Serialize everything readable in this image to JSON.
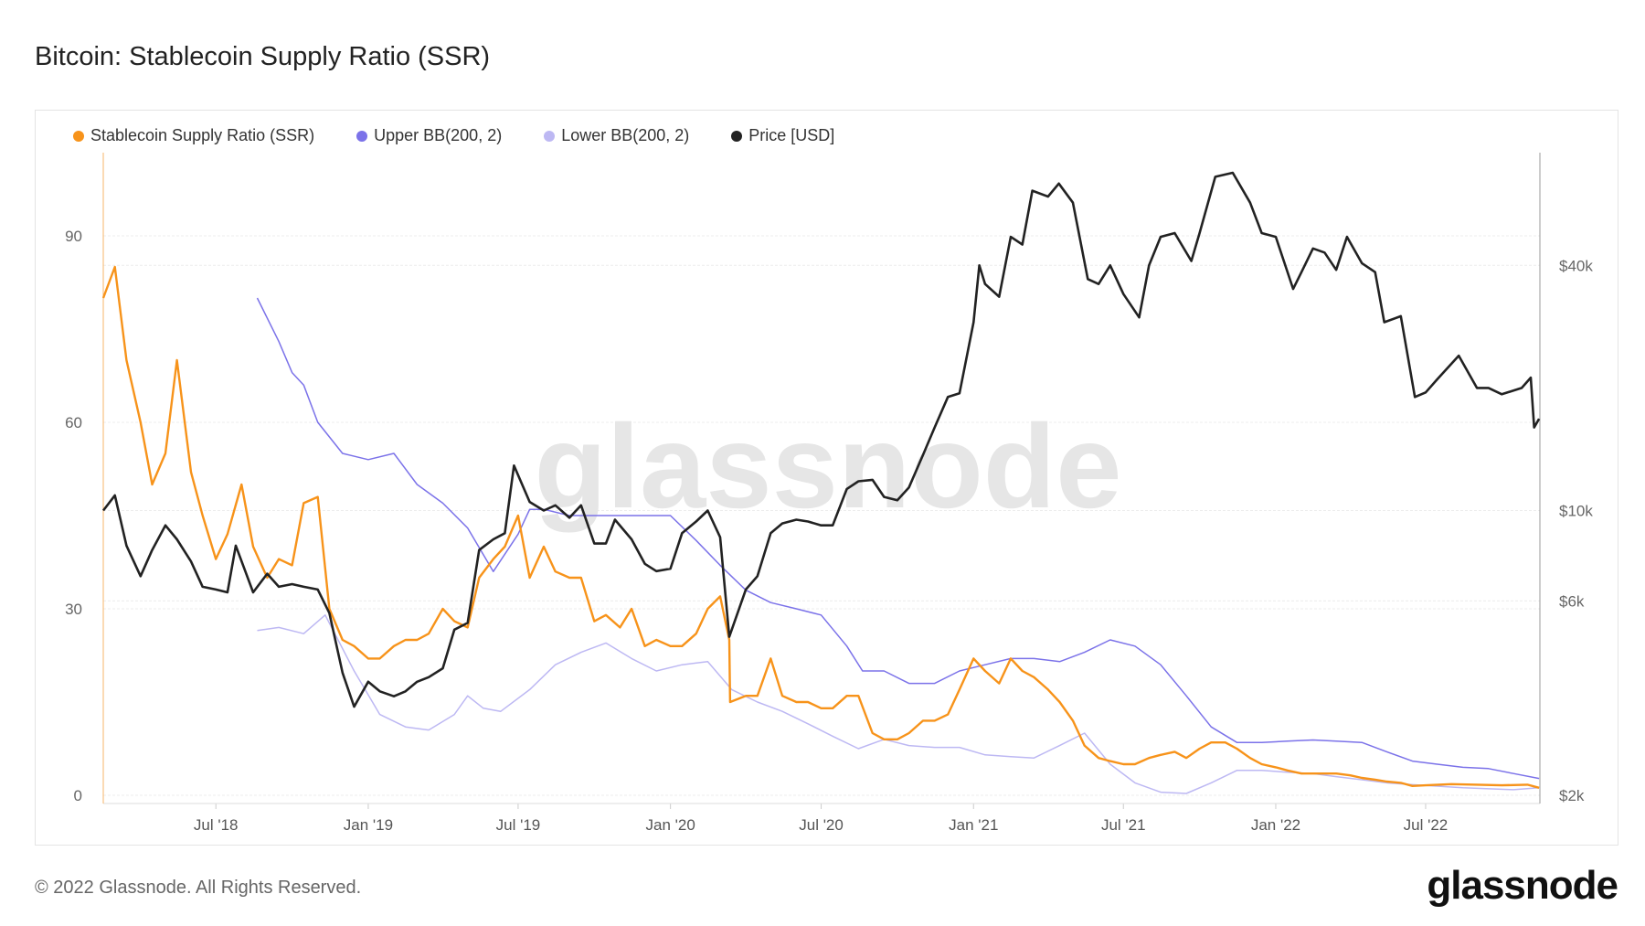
{
  "title": "Bitcoin: Stablecoin Supply Ratio (SSR)",
  "footer": "© 2022 Glassnode. All Rights Reserved.",
  "logo": "glassnode",
  "watermark": "glassnode",
  "chart_data": {
    "type": "line",
    "title": "Bitcoin: Stablecoin Supply Ratio (SSR)",
    "legend_placement": "top-left",
    "grid": true,
    "x_ticks": [
      "Jul '18",
      "Jan '19",
      "Jul '19",
      "Jan '20",
      "Jul '20",
      "Jan '21",
      "Jul '21",
      "Jan '22",
      "Jul '22"
    ],
    "x_tick_dates": [
      "2018-07-01",
      "2019-01-01",
      "2019-07-01",
      "2020-01-01",
      "2020-07-01",
      "2021-01-01",
      "2021-07-01",
      "2022-01-01",
      "2022-07-01"
    ],
    "xlim": [
      "2018-02-15",
      "2022-11-16"
    ],
    "y_left": {
      "ticks": [
        0,
        30,
        60,
        90
      ],
      "tick_labels": [
        "0",
        "30",
        "60",
        "90"
      ],
      "lim": [
        0,
        103
      ],
      "scale": "linear"
    },
    "y_right": {
      "ticks": [
        2000,
        6000,
        10000,
        40000
      ],
      "tick_labels": [
        "$2k",
        "$6k",
        "$10k",
        "$40k"
      ],
      "lim": [
        2000,
        80000
      ],
      "scale": "log"
    },
    "series": [
      {
        "name": "Stablecoin Supply Ratio (SSR)",
        "axis": "left",
        "color": "#f7931a",
        "x": [
          "2018-02-15",
          "2018-03-01",
          "2018-03-15",
          "2018-04-01",
          "2018-04-15",
          "2018-05-01",
          "2018-05-15",
          "2018-06-01",
          "2018-06-15",
          "2018-07-01",
          "2018-07-15",
          "2018-08-01",
          "2018-08-15",
          "2018-09-01",
          "2018-09-15",
          "2018-10-01",
          "2018-10-15",
          "2018-11-01",
          "2018-11-15",
          "2018-12-01",
          "2018-12-15",
          "2019-01-01",
          "2019-01-15",
          "2019-02-01",
          "2019-02-15",
          "2019-03-01",
          "2019-03-15",
          "2019-04-01",
          "2019-04-15",
          "2019-05-01",
          "2019-05-15",
          "2019-06-01",
          "2019-06-15",
          "2019-07-01",
          "2019-07-15",
          "2019-08-01",
          "2019-08-15",
          "2019-09-01",
          "2019-09-15",
          "2019-10-01",
          "2019-10-15",
          "2019-11-01",
          "2019-11-15",
          "2019-12-01",
          "2019-12-15",
          "2020-01-01",
          "2020-01-15",
          "2020-02-01",
          "2020-02-15",
          "2020-03-01",
          "2020-03-12",
          "2020-03-13",
          "2020-04-01",
          "2020-04-15",
          "2020-05-01",
          "2020-05-15",
          "2020-06-01",
          "2020-06-15",
          "2020-07-01",
          "2020-07-15",
          "2020-08-01",
          "2020-08-15",
          "2020-09-01",
          "2020-09-15",
          "2020-10-01",
          "2020-10-15",
          "2020-11-01",
          "2020-11-15",
          "2020-12-01",
          "2020-12-15",
          "2021-01-01",
          "2021-01-15",
          "2021-02-01",
          "2021-02-15",
          "2021-03-01",
          "2021-03-15",
          "2021-04-01",
          "2021-04-15",
          "2021-05-01",
          "2021-05-15",
          "2021-06-01",
          "2021-06-15",
          "2021-07-01",
          "2021-07-15",
          "2021-08-01",
          "2021-08-15",
          "2021-09-01",
          "2021-09-15",
          "2021-10-01",
          "2021-10-15",
          "2021-11-01",
          "2021-11-15",
          "2021-12-01",
          "2021-12-15",
          "2022-01-01",
          "2022-01-15",
          "2022-02-01",
          "2022-02-15",
          "2022-03-01",
          "2022-03-15",
          "2022-04-01",
          "2022-04-15",
          "2022-05-01",
          "2022-05-15",
          "2022-06-01",
          "2022-06-15",
          "2022-07-01",
          "2022-08-01",
          "2022-09-01",
          "2022-10-01",
          "2022-11-01",
          "2022-11-15"
        ],
        "y": [
          80,
          85,
          70,
          60,
          50,
          55,
          70,
          52,
          45,
          38,
          42,
          50,
          40,
          35,
          38,
          37,
          47,
          48,
          30,
          25,
          24,
          22,
          22,
          24,
          25,
          25,
          26,
          30,
          28,
          27,
          35,
          38,
          40,
          45,
          35,
          40,
          36,
          35,
          35,
          28,
          29,
          27,
          30,
          24,
          25,
          24,
          24,
          26,
          30,
          32,
          25,
          15,
          16,
          16,
          22,
          16,
          15,
          15,
          14,
          14,
          16,
          16,
          10,
          9,
          9,
          10,
          12,
          12,
          13,
          17,
          22,
          20,
          18,
          22,
          20,
          19,
          17,
          15,
          12,
          8,
          6,
          5.5,
          5,
          5,
          6,
          6.5,
          7,
          6,
          7.5,
          8.5,
          8.5,
          7.5,
          6,
          5,
          4.5,
          4,
          3.5,
          3.5,
          3.5,
          3.5,
          3.2,
          2.8,
          2.5,
          2.2,
          2,
          1.5,
          1.6,
          1.8,
          1.7,
          1.6,
          1.7,
          1.2
        ]
      },
      {
        "name": "Upper BB(200, 2)",
        "axis": "left",
        "color": "#7b72e9",
        "x": [
          "2018-08-20",
          "2018-09-15",
          "2018-10-01",
          "2018-10-15",
          "2018-11-01",
          "2018-12-01",
          "2019-01-01",
          "2019-02-01",
          "2019-03-01",
          "2019-04-01",
          "2019-05-01",
          "2019-06-01",
          "2019-07-01",
          "2019-07-15",
          "2019-08-01",
          "2019-09-01",
          "2019-10-01",
          "2019-11-01",
          "2019-12-01",
          "2020-01-01",
          "2020-02-01",
          "2020-03-01",
          "2020-04-01",
          "2020-05-01",
          "2020-06-01",
          "2020-07-01",
          "2020-08-01",
          "2020-08-20",
          "2020-09-15",
          "2020-10-15",
          "2020-11-15",
          "2020-12-15",
          "2021-01-15",
          "2021-02-15",
          "2021-03-15",
          "2021-04-15",
          "2021-05-15",
          "2021-06-15",
          "2021-07-15",
          "2021-08-15",
          "2021-09-15",
          "2021-10-15",
          "2021-11-15",
          "2021-12-15",
          "2022-01-15",
          "2022-02-15",
          "2022-03-15",
          "2022-04-15",
          "2022-05-15",
          "2022-06-15",
          "2022-07-15",
          "2022-08-15",
          "2022-09-15",
          "2022-10-15",
          "2022-11-15"
        ],
        "y": [
          80,
          73,
          68,
          66,
          60,
          55,
          54,
          55,
          50,
          47,
          43,
          36,
          42,
          46,
          46,
          45,
          45,
          45,
          45,
          45,
          41,
          37,
          33,
          31,
          30,
          29,
          24,
          20,
          20,
          18,
          18,
          20,
          21,
          22,
          22,
          21.5,
          23,
          25,
          24,
          21,
          16,
          11,
          8.5,
          8.5,
          8.7,
          8.9,
          8.7,
          8.5,
          7,
          5.5,
          5,
          4.5,
          4.3,
          3.5,
          2.7
        ]
      },
      {
        "name": "Lower BB(200, 2)",
        "axis": "left",
        "color": "#bdb8f3",
        "x": [
          "2018-08-20",
          "2018-09-15",
          "2018-10-15",
          "2018-11-10",
          "2018-12-15",
          "2019-01-15",
          "2019-02-15",
          "2019-03-15",
          "2019-04-15",
          "2019-05-01",
          "2019-05-20",
          "2019-06-10",
          "2019-07-15",
          "2019-08-15",
          "2019-09-15",
          "2019-10-15",
          "2019-11-15",
          "2019-12-15",
          "2020-01-15",
          "2020-02-15",
          "2020-03-15",
          "2020-04-15",
          "2020-05-15",
          "2020-06-15",
          "2020-07-15",
          "2020-08-15",
          "2020-09-15",
          "2020-10-15",
          "2020-11-15",
          "2020-12-15",
          "2021-01-15",
          "2021-02-15",
          "2021-03-15",
          "2021-04-15",
          "2021-05-15",
          "2021-06-15",
          "2021-07-15",
          "2021-08-15",
          "2021-09-15",
          "2021-10-15",
          "2021-11-15",
          "2021-12-15",
          "2022-01-15",
          "2022-02-15",
          "2022-03-15",
          "2022-04-15",
          "2022-05-15",
          "2022-06-15",
          "2022-08-15",
          "2022-10-15",
          "2022-11-15"
        ],
        "y": [
          26.5,
          27,
          26,
          29,
          20,
          13,
          11,
          10.5,
          13,
          16,
          14,
          13.5,
          17,
          21,
          23,
          24.5,
          22,
          20,
          21,
          21.5,
          17,
          15,
          13.5,
          11.5,
          9.5,
          7.5,
          9,
          8,
          7.7,
          7.7,
          6.5,
          6.2,
          6,
          8,
          10,
          5,
          2,
          0.5,
          0.3,
          2,
          4,
          4,
          3.7,
          3.5,
          3,
          2.5,
          2,
          1.7,
          1.2,
          0.9,
          1.2
        ]
      },
      {
        "name": "Price [USD]",
        "axis": "right",
        "color": "#222222",
        "x": [
          "2018-02-15",
          "2018-03-01",
          "2018-03-15",
          "2018-04-01",
          "2018-04-15",
          "2018-05-01",
          "2018-05-15",
          "2018-06-01",
          "2018-06-15",
          "2018-07-01",
          "2018-07-15",
          "2018-07-25",
          "2018-08-15",
          "2018-09-01",
          "2018-09-15",
          "2018-10-01",
          "2018-10-15",
          "2018-11-01",
          "2018-11-15",
          "2018-12-01",
          "2018-12-15",
          "2019-01-01",
          "2019-01-15",
          "2019-02-01",
          "2019-02-15",
          "2019-03-01",
          "2019-03-15",
          "2019-04-01",
          "2019-04-15",
          "2019-05-01",
          "2019-05-15",
          "2019-06-01",
          "2019-06-15",
          "2019-06-26",
          "2019-07-15",
          "2019-08-01",
          "2019-08-15",
          "2019-09-01",
          "2019-09-15",
          "2019-10-01",
          "2019-10-15",
          "2019-10-26",
          "2019-11-15",
          "2019-12-01",
          "2019-12-15",
          "2020-01-01",
          "2020-01-15",
          "2020-02-01",
          "2020-02-15",
          "2020-03-01",
          "2020-03-12",
          "2020-04-01",
          "2020-04-15",
          "2020-05-01",
          "2020-05-15",
          "2020-06-01",
          "2020-06-15",
          "2020-07-01",
          "2020-07-15",
          "2020-08-01",
          "2020-08-15",
          "2020-09-01",
          "2020-09-15",
          "2020-10-01",
          "2020-10-15",
          "2020-11-01",
          "2020-11-15",
          "2020-12-01",
          "2020-12-15",
          "2021-01-01",
          "2021-01-08",
          "2021-01-15",
          "2021-02-01",
          "2021-02-15",
          "2021-03-01",
          "2021-03-13",
          "2021-04-01",
          "2021-04-14",
          "2021-05-01",
          "2021-05-19",
          "2021-06-01",
          "2021-06-15",
          "2021-07-01",
          "2021-07-20",
          "2021-08-01",
          "2021-08-15",
          "2021-09-01",
          "2021-09-21",
          "2021-10-01",
          "2021-10-20",
          "2021-11-10",
          "2021-12-01",
          "2021-12-15",
          "2022-01-01",
          "2022-01-22",
          "2022-02-01",
          "2022-02-15",
          "2022-03-01",
          "2022-03-15",
          "2022-03-28",
          "2022-04-15",
          "2022-05-01",
          "2022-05-12",
          "2022-06-01",
          "2022-06-18",
          "2022-07-01",
          "2022-07-15",
          "2022-08-10",
          "2022-09-01",
          "2022-09-15",
          "2022-10-01",
          "2022-10-25",
          "2022-11-05",
          "2022-11-09",
          "2022-11-15"
        ],
        "y": [
          10000,
          10900,
          8200,
          6900,
          8000,
          9200,
          8500,
          7500,
          6500,
          6400,
          6300,
          8200,
          6300,
          7000,
          6500,
          6600,
          6500,
          6400,
          5600,
          4000,
          3300,
          3800,
          3600,
          3500,
          3600,
          3800,
          3900,
          4100,
          5100,
          5300,
          8000,
          8500,
          8800,
          12900,
          10500,
          10000,
          10300,
          9600,
          10300,
          8300,
          8300,
          9500,
          8500,
          7400,
          7100,
          7200,
          8800,
          9400,
          10000,
          8600,
          4900,
          6400,
          6900,
          8800,
          9300,
          9500,
          9400,
          9200,
          9200,
          11300,
          11800,
          11900,
          10800,
          10600,
          11400,
          13700,
          16000,
          19000,
          19400,
          29000,
          40000,
          36000,
          33500,
          47000,
          45000,
          61000,
          59000,
          63500,
          57000,
          37000,
          36000,
          40000,
          34000,
          29800,
          40000,
          47000,
          48000,
          41000,
          48000,
          66000,
          67500,
          57000,
          48000,
          47000,
          35000,
          38500,
          44000,
          43000,
          39000,
          47000,
          40500,
          38500,
          29000,
          30000,
          19000,
          19500,
          21000,
          24000,
          20000,
          20000,
          19300,
          20000,
          21200,
          16000,
          16800
        ]
      }
    ]
  }
}
